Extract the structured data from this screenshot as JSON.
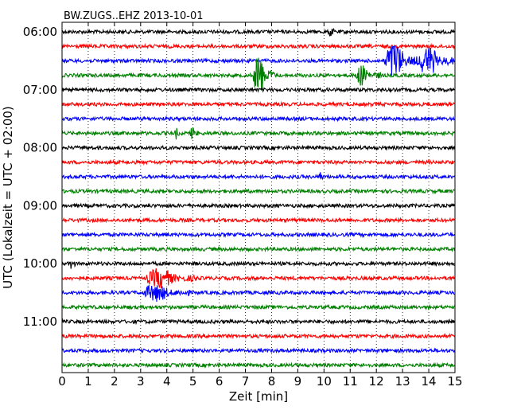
{
  "chart_data": {
    "type": "line",
    "title": "BW.ZUGS..EHZ 2013-10-01",
    "xlabel": "Zeit  [min]",
    "ylabel": "UTC (Lokalzeit = UTC + 02:00)",
    "xlim": [
      0,
      15
    ],
    "xticks": [
      "0",
      "1",
      "2",
      "3",
      "4",
      "5",
      "6",
      "7",
      "8",
      "9",
      "10",
      "11",
      "12",
      "13",
      "14",
      "15"
    ],
    "grid": "dotted-vertical",
    "trace_interval_minutes": 15,
    "first_trace": "06:00",
    "trace_count": 24,
    "trace_colors": [
      "#000000",
      "#ff0000",
      "#0000ff",
      "#008000"
    ],
    "hour_labels": [
      {
        "label": "06:00",
        "trace": 0
      },
      {
        "label": "07:00",
        "trace": 4
      },
      {
        "label": "08:00",
        "trace": 8
      },
      {
        "label": "09:00",
        "trace": 12
      },
      {
        "label": "10:00",
        "trace": 16
      },
      {
        "label": "11:00",
        "trace": 20
      }
    ],
    "events": [
      {
        "trace": 0,
        "start": 10.2,
        "duration": 0.2,
        "amplitude": 1.2
      },
      {
        "trace": 2,
        "start": 12.3,
        "duration": 1.4,
        "amplitude": 3.0
      },
      {
        "trace": 2,
        "start": 13.6,
        "duration": 1.4,
        "amplitude": 2.4
      },
      {
        "trace": 3,
        "start": 7.3,
        "duration": 0.8,
        "amplitude": 3.6
      },
      {
        "trace": 3,
        "start": 11.2,
        "duration": 1.0,
        "amplitude": 1.6
      },
      {
        "trace": 7,
        "start": 4.3,
        "duration": 0.2,
        "amplitude": 0.8
      },
      {
        "trace": 7,
        "start": 4.9,
        "duration": 0.3,
        "amplitude": 0.9
      },
      {
        "trace": 10,
        "start": 9.8,
        "duration": 0.2,
        "amplitude": 0.8
      },
      {
        "trace": 16,
        "start": 0.3,
        "duration": 0.2,
        "amplitude": 0.9
      },
      {
        "trace": 17,
        "start": 3.2,
        "duration": 2.0,
        "amplitude": 1.5
      },
      {
        "trace": 18,
        "start": 3.1,
        "duration": 1.8,
        "amplitude": 1.3
      }
    ]
  }
}
